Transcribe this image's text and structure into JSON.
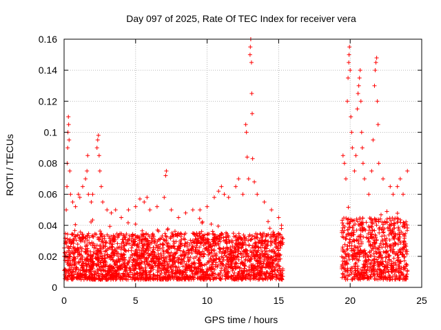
{
  "chart_data": {
    "type": "scatter",
    "title": "Day 097 of 2025, Rate Of TEC Index for receiver vera",
    "xlabel": "GPS time / hours",
    "ylabel": "ROTI / TECUs",
    "xlim": [
      0,
      25
    ],
    "ylim": [
      0,
      0.16
    ],
    "x_ticks": [
      "0",
      "5",
      "10",
      "15",
      "20",
      "25"
    ],
    "y_ticks": [
      "0",
      "0.02",
      "0.04",
      "0.06",
      "0.08",
      "0.1",
      "0.12",
      "0.14",
      "0.16"
    ],
    "grid": true,
    "legend": "none",
    "marker": "plus",
    "color": "#ff0000",
    "data_segments": [
      {
        "x_start": 0.0,
        "x_end": 15.3,
        "typical_min": 0.005,
        "typical_max": 0.035
      },
      {
        "x_start": 19.4,
        "x_end": 24.0,
        "typical_min": 0.005,
        "typical_max": 0.045
      }
    ],
    "points": [
      [
        0.15,
        0.05
      ],
      [
        0.2,
        0.065
      ],
      [
        0.22,
        0.08
      ],
      [
        0.25,
        0.09
      ],
      [
        0.27,
        0.1
      ],
      [
        0.3,
        0.11
      ],
      [
        0.32,
        0.105
      ],
      [
        0.35,
        0.095
      ],
      [
        0.4,
        0.075
      ],
      [
        0.45,
        0.06
      ],
      [
        0.6,
        0.055
      ],
      [
        0.8,
        0.052
      ],
      [
        1.0,
        0.06
      ],
      [
        1.1,
        0.058
      ],
      [
        1.3,
        0.065
      ],
      [
        1.5,
        0.07
      ],
      [
        1.6,
        0.075
      ],
      [
        1.65,
        0.085
      ],
      [
        1.7,
        0.06
      ],
      [
        1.9,
        0.055
      ],
      [
        2.0,
        0.06
      ],
      [
        2.3,
        0.09
      ],
      [
        2.35,
        0.095
      ],
      [
        2.4,
        0.098
      ],
      [
        2.45,
        0.085
      ],
      [
        2.5,
        0.075
      ],
      [
        2.6,
        0.065
      ],
      [
        2.7,
        0.055
      ],
      [
        3.0,
        0.05
      ],
      [
        3.3,
        0.048
      ],
      [
        3.6,
        0.05
      ],
      [
        4.0,
        0.045
      ],
      [
        4.5,
        0.05
      ],
      [
        5.0,
        0.052
      ],
      [
        5.3,
        0.057
      ],
      [
        5.6,
        0.055
      ],
      [
        5.8,
        0.058
      ],
      [
        6.0,
        0.05
      ],
      [
        6.5,
        0.052
      ],
      [
        7.0,
        0.058
      ],
      [
        7.1,
        0.072
      ],
      [
        7.15,
        0.075
      ],
      [
        7.5,
        0.05
      ],
      [
        8.0,
        0.045
      ],
      [
        8.5,
        0.048
      ],
      [
        9.0,
        0.05
      ],
      [
        9.5,
        0.05
      ],
      [
        10.0,
        0.052
      ],
      [
        10.5,
        0.058
      ],
      [
        10.8,
        0.062
      ],
      [
        11.0,
        0.065
      ],
      [
        11.2,
        0.06
      ],
      [
        11.5,
        0.058
      ],
      [
        12.0,
        0.065
      ],
      [
        12.2,
        0.07
      ],
      [
        12.5,
        0.06
      ],
      [
        12.7,
        0.105
      ],
      [
        12.75,
        0.1
      ],
      [
        12.8,
        0.084
      ],
      [
        12.9,
        0.07
      ],
      [
        13.0,
        0.15
      ],
      [
        13.02,
        0.155
      ],
      [
        13.05,
        0.16
      ],
      [
        13.1,
        0.145
      ],
      [
        13.12,
        0.125
      ],
      [
        13.15,
        0.112
      ],
      [
        13.18,
        0.083
      ],
      [
        13.3,
        0.068
      ],
      [
        13.5,
        0.06
      ],
      [
        14.0,
        0.055
      ],
      [
        14.5,
        0.05
      ],
      [
        15.0,
        0.045
      ],
      [
        15.2,
        0.04
      ],
      [
        19.5,
        0.085
      ],
      [
        19.6,
        0.08
      ],
      [
        19.7,
        0.07
      ],
      [
        19.8,
        0.12
      ],
      [
        19.85,
        0.135
      ],
      [
        19.9,
        0.145
      ],
      [
        19.92,
        0.15
      ],
      [
        19.95,
        0.155
      ],
      [
        20.0,
        0.14
      ],
      [
        20.05,
        0.11
      ],
      [
        20.1,
        0.1
      ],
      [
        20.15,
        0.09
      ],
      [
        20.3,
        0.075
      ],
      [
        20.4,
        0.085
      ],
      [
        20.5,
        0.115
      ],
      [
        20.55,
        0.125
      ],
      [
        20.6,
        0.13
      ],
      [
        20.65,
        0.135
      ],
      [
        20.7,
        0.14
      ],
      [
        20.75,
        0.12
      ],
      [
        20.8,
        0.1
      ],
      [
        20.85,
        0.09
      ],
      [
        20.9,
        0.08
      ],
      [
        21.0,
        0.07
      ],
      [
        21.3,
        0.06
      ],
      [
        21.5,
        0.075
      ],
      [
        21.6,
        0.095
      ],
      [
        21.7,
        0.13
      ],
      [
        21.75,
        0.14
      ],
      [
        21.8,
        0.145
      ],
      [
        21.85,
        0.148
      ],
      [
        21.9,
        0.12
      ],
      [
        21.95,
        0.105
      ],
      [
        22.0,
        0.08
      ],
      [
        22.3,
        0.07
      ],
      [
        22.8,
        0.065
      ],
      [
        23.0,
        0.06
      ],
      [
        23.3,
        0.065
      ],
      [
        23.5,
        0.07
      ],
      [
        23.7,
        0.06
      ],
      [
        24.0,
        0.075
      ]
    ]
  }
}
